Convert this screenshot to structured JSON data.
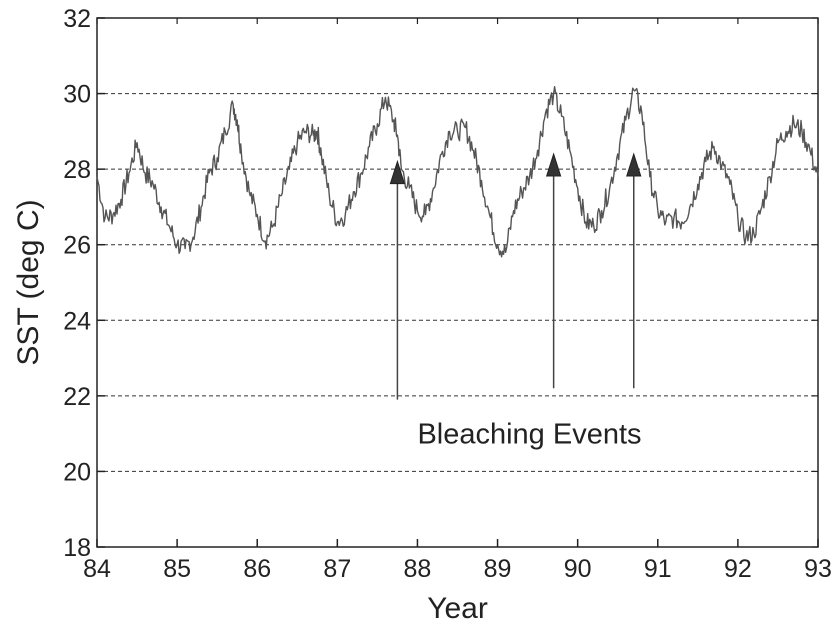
{
  "chart_data": {
    "type": "line",
    "title": "",
    "xlabel": "Year",
    "ylabel": "SST (deg C)",
    "xlim": [
      84,
      93
    ],
    "ylim": [
      18,
      32
    ],
    "x_ticks": [
      "84",
      "85",
      "86",
      "87",
      "88",
      "89",
      "90",
      "91",
      "92",
      "93"
    ],
    "y_ticks": [
      "18",
      "20",
      "22",
      "24",
      "26",
      "28",
      "30",
      "32"
    ],
    "grid": "horizontal dashed",
    "series": [
      {
        "color": "#555555",
        "x": [
          84.0,
          84.1,
          84.2,
          84.3,
          84.4,
          84.5,
          84.6,
          84.7,
          84.8,
          84.9,
          85.0,
          85.1,
          85.2,
          85.3,
          85.4,
          85.5,
          85.6,
          85.7,
          85.75,
          85.8,
          85.9,
          86.0,
          86.1,
          86.2,
          86.3,
          86.4,
          86.5,
          86.6,
          86.7,
          86.75,
          86.8,
          86.9,
          87.0,
          87.1,
          87.2,
          87.3,
          87.4,
          87.5,
          87.6,
          87.7,
          87.75,
          87.8,
          87.9,
          88.0,
          88.1,
          88.2,
          88.3,
          88.4,
          88.5,
          88.6,
          88.7,
          88.8,
          88.9,
          89.0,
          89.1,
          89.2,
          89.3,
          89.4,
          89.5,
          89.6,
          89.7,
          89.8,
          89.9,
          90.0,
          90.1,
          90.2,
          90.3,
          90.4,
          90.5,
          90.6,
          90.7,
          90.8,
          90.9,
          91.0,
          91.1,
          91.2,
          91.3,
          91.4,
          91.5,
          91.6,
          91.7,
          91.8,
          91.9,
          92.0,
          92.1,
          92.2,
          92.3,
          92.4,
          92.5,
          92.6,
          92.7,
          92.8,
          92.9,
          93.0
        ],
        "values": [
          27.8,
          26.7,
          26.8,
          27.2,
          27.9,
          28.7,
          27.9,
          27.6,
          27.0,
          26.5,
          26.0,
          25.9,
          26.2,
          27.0,
          27.9,
          28.3,
          29.0,
          29.7,
          29.3,
          28.5,
          27.4,
          26.8,
          26.1,
          26.5,
          27.3,
          28.0,
          28.7,
          29.0,
          28.9,
          29.0,
          28.4,
          27.3,
          26.6,
          26.8,
          27.4,
          27.9,
          28.6,
          29.2,
          29.9,
          29.3,
          28.9,
          28.0,
          27.5,
          26.9,
          26.8,
          27.5,
          28.4,
          29.0,
          29.0,
          29.1,
          28.5,
          27.7,
          26.8,
          26.0,
          25.8,
          26.9,
          27.4,
          27.8,
          28.5,
          29.5,
          30.0,
          29.4,
          28.5,
          27.5,
          26.6,
          26.5,
          26.9,
          27.5,
          28.4,
          29.3,
          30.1,
          29.5,
          27.8,
          26.9,
          26.6,
          26.7,
          26.6,
          27.0,
          27.6,
          28.2,
          28.6,
          28.1,
          27.6,
          26.7,
          26.2,
          26.3,
          27.0,
          27.8,
          28.7,
          29.0,
          29.2,
          29.0,
          28.5,
          27.8
        ]
      }
    ],
    "arrows": [
      {
        "x": 87.75,
        "y_start": 21.9,
        "y_end": 28.2
      },
      {
        "x": 89.7,
        "y_start": 22.2,
        "y_end": 28.4
      },
      {
        "x": 90.7,
        "y_start": 22.2,
        "y_end": 28.4
      }
    ],
    "annotations": [
      {
        "text": "Bleaching Events",
        "x": 88.0,
        "y": 21.0
      }
    ]
  }
}
